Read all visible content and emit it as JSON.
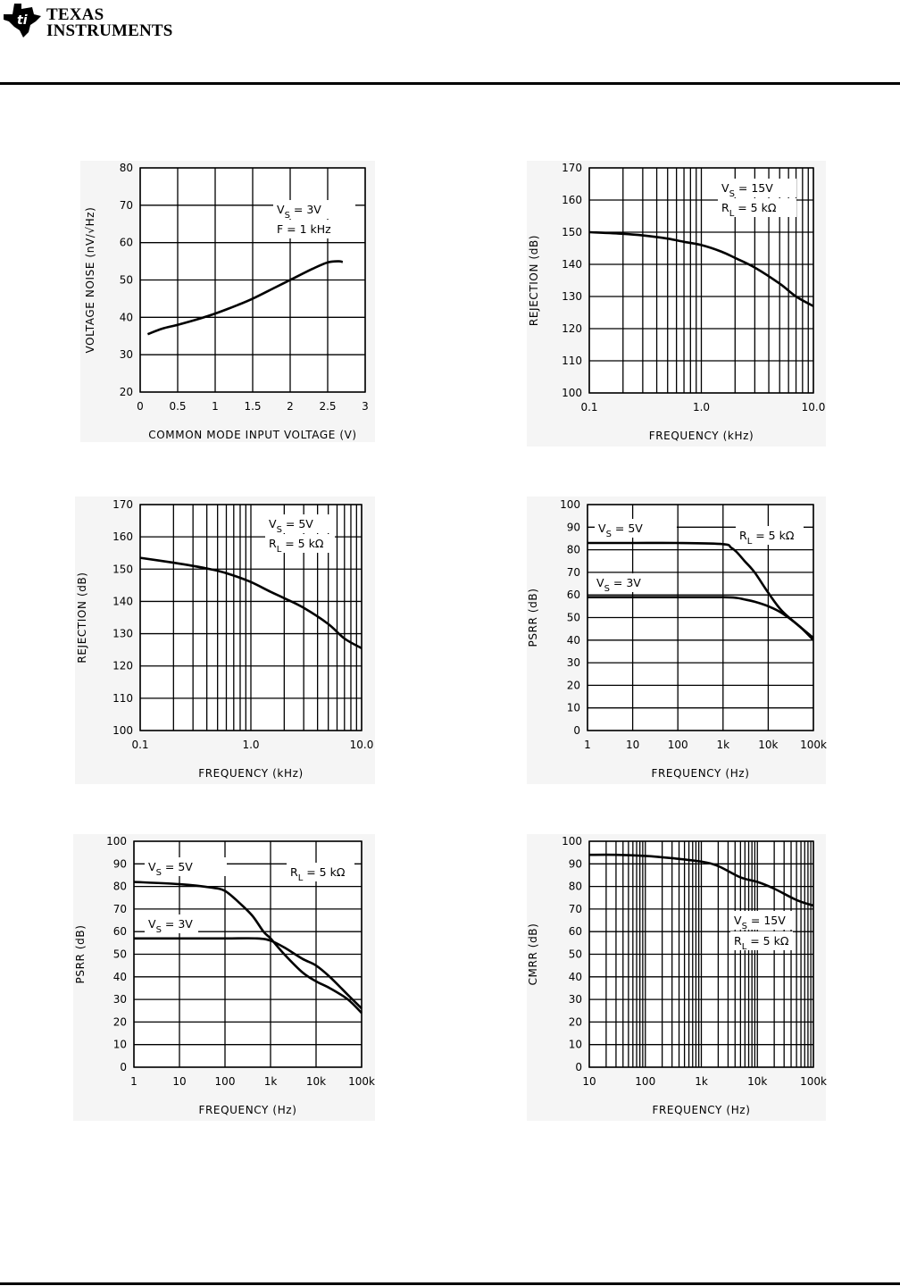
{
  "header": {
    "logo_line1": "TEXAS",
    "logo_line2": "INSTRUMENTS"
  },
  "chart_data": [
    {
      "type": "line",
      "xlabel": "COMMON MODE INPUT VOLTAGE (V)",
      "ylabel": "VOLTAGE NOISE (nV/√Hz)",
      "xscale": "linear",
      "xlim": [
        0,
        3
      ],
      "ylim": [
        20,
        80
      ],
      "xticks": [
        0,
        0.5,
        1,
        1.5,
        2,
        2.5,
        3
      ],
      "xtick_labels": [
        "0",
        "0.5",
        "1",
        "1.5",
        "2",
        "2.5",
        "3"
      ],
      "yticks": [
        20,
        30,
        40,
        50,
        60,
        70,
        80
      ],
      "ytick_labels": [
        "20",
        "30",
        "40",
        "50",
        "60",
        "70",
        "80"
      ],
      "grid": "major",
      "annotations": [
        {
          "v": "V",
          "sub": "S",
          "rest": " = 3V"
        },
        {
          "v": "F = 1 kHz",
          "sub": "",
          "rest": ""
        }
      ],
      "series": [
        {
          "x": [
            0.1,
            0.3,
            0.5,
            0.8,
            1,
            1.3,
            1.5,
            1.8,
            2,
            2.3,
            2.5,
            2.65,
            2.7
          ],
          "y": [
            35.5,
            37,
            38,
            39.7,
            41,
            43.3,
            45,
            48,
            50,
            53,
            54.7,
            55,
            54.8
          ]
        }
      ]
    },
    {
      "type": "line",
      "xlabel": "FREQUENCY (kHz)",
      "ylabel": "REJECTION (dB)",
      "xscale": "log",
      "xlim": [
        0.1,
        10
      ],
      "ylim": [
        100,
        170
      ],
      "xticks": [
        0.1,
        1,
        10
      ],
      "xtick_labels": [
        "0.1",
        "1.0",
        "10.0"
      ],
      "yticks": [
        100,
        110,
        120,
        130,
        140,
        150,
        160,
        170
      ],
      "ytick_labels": [
        "100",
        "110",
        "120",
        "130",
        "140",
        "150",
        "160",
        "170"
      ],
      "grid": "full-log",
      "annotations": [
        {
          "v": "V",
          "sub": "S",
          "rest": " = 15V"
        },
        {
          "v": "R",
          "sub": "L",
          "rest": " = 5 kΩ"
        }
      ],
      "series": [
        {
          "x": [
            0.1,
            0.2,
            0.3,
            0.5,
            0.7,
            1,
            1.5,
            2,
            3,
            5,
            7,
            10
          ],
          "y": [
            150,
            149.5,
            149,
            148,
            147,
            146,
            144,
            142,
            139,
            134,
            130,
            127
          ]
        }
      ]
    },
    {
      "type": "line",
      "xlabel": "FREQUENCY (kHz)",
      "ylabel": "REJECTION (dB)",
      "xscale": "log",
      "xlim": [
        0.1,
        10
      ],
      "ylim": [
        100,
        170
      ],
      "xticks": [
        0.1,
        1,
        10
      ],
      "xtick_labels": [
        "0.1",
        "1.0",
        "10.0"
      ],
      "yticks": [
        100,
        110,
        120,
        130,
        140,
        150,
        160,
        170
      ],
      "ytick_labels": [
        "100",
        "110",
        "120",
        "130",
        "140",
        "150",
        "160",
        "170"
      ],
      "grid": "full-log",
      "annotations": [
        {
          "v": "V",
          "sub": "S",
          "rest": " = 5V"
        },
        {
          "v": "R",
          "sub": "L",
          "rest": " = 5 kΩ"
        }
      ],
      "series": [
        {
          "x": [
            0.1,
            0.2,
            0.3,
            0.5,
            0.7,
            1,
            1.5,
            2,
            3,
            5,
            7,
            10
          ],
          "y": [
            153.5,
            152,
            151,
            149.5,
            148,
            146,
            143,
            141,
            138,
            133,
            128.5,
            125.5
          ]
        }
      ]
    },
    {
      "type": "line",
      "xlabel": "FREQUENCY (Hz)",
      "ylabel": "PSRR (dB)",
      "xscale": "log",
      "xlim": [
        1,
        100000
      ],
      "ylim": [
        0,
        100
      ],
      "xticks": [
        1,
        10,
        100,
        1000,
        10000,
        100000
      ],
      "xtick_labels": [
        "1",
        "10",
        "100",
        "1k",
        "10k",
        "100k"
      ],
      "yticks": [
        0,
        10,
        20,
        30,
        40,
        50,
        60,
        70,
        80,
        90,
        100
      ],
      "ytick_labels": [
        "0",
        "10",
        "20",
        "30",
        "40",
        "50",
        "60",
        "70",
        "80",
        "90",
        "100"
      ],
      "grid": "decades",
      "annotations": [
        {
          "v": "V",
          "sub": "S",
          "rest": " = 5V"
        },
        {
          "v": "R",
          "sub": "L",
          "rest": " = 5 kΩ"
        },
        {
          "v": "V",
          "sub": "S",
          "rest": " = 3V"
        }
      ],
      "series": [
        {
          "name": "VS = 5V",
          "x": [
            1,
            10,
            100,
            1000,
            1500,
            2000,
            3000,
            5000,
            10000,
            20000,
            50000,
            100000
          ],
          "y": [
            83,
            83,
            83,
            82.5,
            81,
            79,
            75,
            70,
            61,
            53,
            46,
            41
          ]
        },
        {
          "name": "VS = 3V",
          "x": [
            1,
            10,
            100,
            1000,
            2000,
            3000,
            5000,
            10000,
            20000,
            50000,
            100000
          ],
          "y": [
            59,
            59,
            59,
            59,
            58.7,
            58,
            57,
            55,
            52,
            46,
            40
          ]
        }
      ]
    },
    {
      "type": "line",
      "xlabel": "FREQUENCY (Hz)",
      "ylabel": "PSRR (dB)",
      "xscale": "log",
      "xlim": [
        1,
        100000
      ],
      "ylim": [
        0,
        100
      ],
      "xticks": [
        1,
        10,
        100,
        1000,
        10000,
        100000
      ],
      "xtick_labels": [
        "1",
        "10",
        "100",
        "1k",
        "10k",
        "100k"
      ],
      "yticks": [
        0,
        10,
        20,
        30,
        40,
        50,
        60,
        70,
        80,
        90,
        100
      ],
      "ytick_labels": [
        "0",
        "10",
        "20",
        "30",
        "40",
        "50",
        "60",
        "70",
        "80",
        "90",
        "100"
      ],
      "grid": "decades",
      "annotations": [
        {
          "v": "V",
          "sub": "S",
          "rest": " = 5V"
        },
        {
          "v": "R",
          "sub": "L",
          "rest": " = 5 kΩ"
        },
        {
          "v": "V",
          "sub": "S",
          "rest": " = 3V"
        }
      ],
      "series": [
        {
          "name": "VS = 5V",
          "x": [
            1,
            10,
            50,
            100,
            200,
            400,
            700,
            1000,
            2000,
            5000,
            10000,
            20000,
            50000,
            100000
          ],
          "y": [
            82,
            81,
            79.5,
            78,
            73,
            67,
            60,
            57,
            50,
            42,
            38,
            35,
            30,
            24
          ]
        },
        {
          "name": "VS = 3V",
          "x": [
            1,
            10,
            100,
            500,
            1000,
            2000,
            5000,
            10000,
            20000,
            50000,
            100000
          ],
          "y": [
            57,
            57,
            57,
            57,
            56,
            53,
            48,
            45,
            40,
            32,
            26
          ]
        }
      ]
    },
    {
      "type": "line",
      "xlabel": "FREQUENCY (Hz)",
      "ylabel": "CMRR (dB)",
      "xscale": "log",
      "xlim": [
        10,
        100000
      ],
      "ylim": [
        0,
        100
      ],
      "xticks": [
        10,
        100,
        1000,
        10000,
        100000
      ],
      "xtick_labels": [
        "10",
        "100",
        "1k",
        "10k",
        "100k"
      ],
      "yticks": [
        0,
        10,
        20,
        30,
        40,
        50,
        60,
        70,
        80,
        90,
        100
      ],
      "ytick_labels": [
        "0",
        "10",
        "20",
        "30",
        "40",
        "50",
        "60",
        "70",
        "80",
        "90",
        "100"
      ],
      "grid": "full-log",
      "annotations": [
        {
          "v": "V",
          "sub": "S",
          "rest": " = 15V"
        },
        {
          "v": "R",
          "sub": "L",
          "rest": " = 5 kΩ"
        }
      ],
      "series": [
        {
          "x": [
            10,
            30,
            100,
            300,
            1000,
            2000,
            5000,
            10000,
            20000,
            50000,
            100000
          ],
          "y": [
            94,
            94,
            93.5,
            92.5,
            91,
            89,
            84,
            82,
            79,
            74,
            71.5
          ]
        }
      ]
    }
  ]
}
